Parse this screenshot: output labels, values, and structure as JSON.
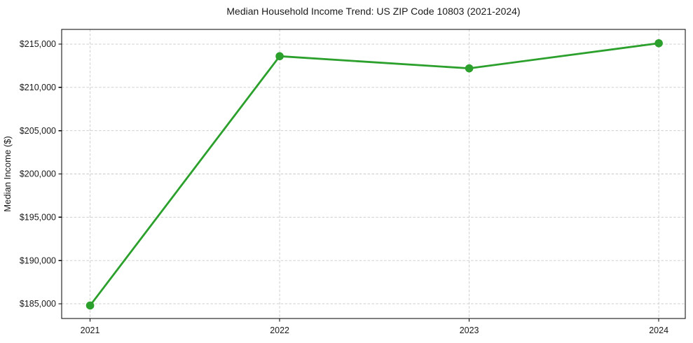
{
  "chart_data": {
    "type": "line",
    "title": "Median Household Income Trend: US ZIP Code 10803 (2021-2024)",
    "xlabel": "",
    "ylabel": "Median Income ($)",
    "x": [
      2021,
      2022,
      2023,
      2024
    ],
    "series": [
      {
        "values": [
          184800,
          213600,
          212200,
          215100
        ],
        "color": "#2ca02c",
        "marker": "circle"
      }
    ],
    "xticks": [
      2021,
      2022,
      2023,
      2024
    ],
    "xtick_labels": [
      "2021",
      "2022",
      "2023",
      "2024"
    ],
    "yticks": [
      185000,
      190000,
      195000,
      200000,
      205000,
      210000,
      215000
    ],
    "ytick_labels": [
      "$185,000",
      "$190,000",
      "$195,000",
      "$200,000",
      "$205,000",
      "$210,000",
      "$215,000"
    ],
    "xlim": [
      2020.85,
      2024.14
    ],
    "ylim": [
      183300,
      216700
    ],
    "grid": true,
    "grid_color": "#c9c9c9",
    "grid_dash": "3.5 2.4",
    "spine_color": "#000000",
    "text_color": "#1a1a1a",
    "background": "#ffffff",
    "legend": "none"
  }
}
